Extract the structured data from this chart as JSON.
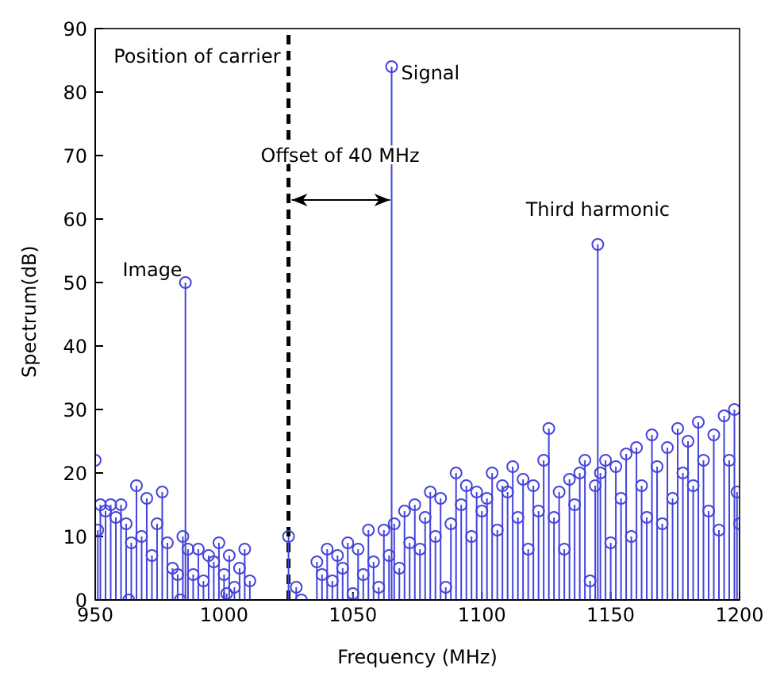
{
  "chart_data": {
    "type": "lollipop",
    "xlabel": "Frequency (MHz)",
    "ylabel": "Spectrum(dB)",
    "marker": "circle",
    "xlim": [
      950,
      1200
    ],
    "xticks": [
      950,
      1000,
      1050,
      1100,
      1150,
      1200
    ],
    "ylim": [
      0,
      90
    ],
    "yticks": [
      0,
      10,
      20,
      30,
      40,
      50,
      60,
      70,
      80,
      90
    ],
    "series": [
      {
        "color": "#4444dd",
        "x": [
          950,
          951,
          952,
          954,
          956,
          958,
          960,
          962,
          963,
          964,
          966,
          968,
          970,
          972,
          974,
          976,
          978,
          980,
          982,
          983,
          984,
          985,
          986,
          988,
          990,
          992,
          994,
          996,
          998,
          1000,
          1001,
          1002,
          1004,
          1006,
          1008,
          1010,
          1025,
          1028,
          1030,
          1036,
          1038,
          1040,
          1042,
          1044,
          1046,
          1048,
          1050,
          1052,
          1054,
          1056,
          1058,
          1060,
          1062,
          1064,
          1065,
          1066,
          1068,
          1070,
          1072,
          1074,
          1076,
          1078,
          1080,
          1082,
          1084,
          1086,
          1088,
          1090,
          1092,
          1094,
          1096,
          1098,
          1100,
          1102,
          1104,
          1106,
          1108,
          1110,
          1112,
          1114,
          1116,
          1118,
          1120,
          1122,
          1124,
          1126,
          1128,
          1130,
          1132,
          1134,
          1136,
          1138,
          1140,
          1142,
          1144,
          1145,
          1146,
          1148,
          1150,
          1152,
          1154,
          1156,
          1158,
          1160,
          1162,
          1164,
          1166,
          1168,
          1170,
          1172,
          1174,
          1176,
          1178,
          1180,
          1182,
          1184,
          1186,
          1188,
          1190,
          1192,
          1194,
          1196,
          1198,
          1199,
          1200
        ],
        "values": [
          22,
          11,
          15,
          14,
          15,
          13,
          15,
          12,
          0,
          9,
          18,
          10,
          16,
          7,
          12,
          17,
          9,
          5,
          4,
          0,
          10,
          50,
          8,
          4,
          8,
          3,
          7,
          6,
          9,
          4,
          1,
          7,
          2,
          5,
          8,
          3,
          10,
          2,
          0,
          6,
          4,
          8,
          3,
          7,
          5,
          9,
          1,
          8,
          4,
          11,
          6,
          2,
          11,
          7,
          84,
          12,
          5,
          14,
          9,
          15,
          8,
          13,
          17,
          10,
          16,
          2,
          12,
          20,
          15,
          18,
          10,
          17,
          14,
          16,
          20,
          11,
          18,
          17,
          21,
          13,
          19,
          8,
          18,
          14,
          22,
          27,
          13,
          17,
          8,
          19,
          15,
          20,
          22,
          3,
          18,
          56,
          20,
          22,
          9,
          21,
          16,
          23,
          10,
          24,
          18,
          13,
          26,
          21,
          12,
          24,
          16,
          27,
          20,
          25,
          18,
          28,
          22,
          14,
          26,
          11,
          29,
          22,
          30,
          17,
          12
        ]
      }
    ],
    "ref_lines": [
      {
        "axis": "x",
        "value": 1025,
        "label": "Position of carrier",
        "color": "#000000",
        "line_style": "dashed"
      }
    ],
    "annotations": [
      {
        "text": "Image",
        "x": 985,
        "y": 50
      },
      {
        "text": "Signal",
        "x": 1065,
        "y": 84
      },
      "Offset of 40 MHz",
      {
        "text": "Third harmonic",
        "x": 1145,
        "y": 56
      }
    ]
  }
}
